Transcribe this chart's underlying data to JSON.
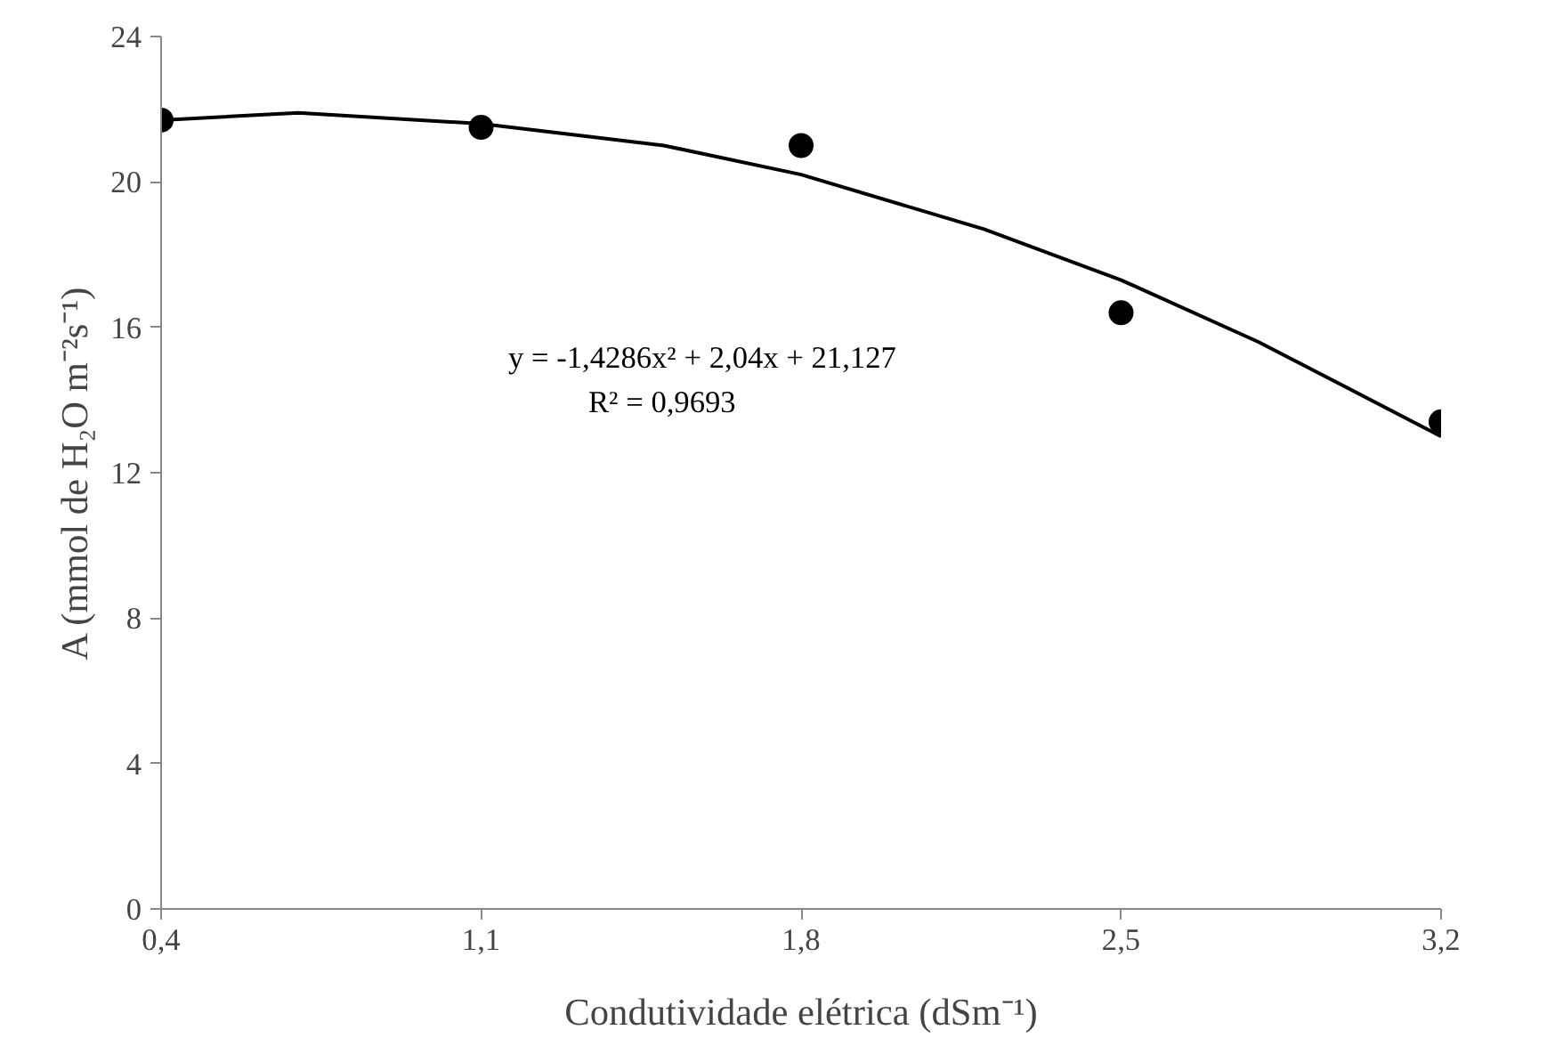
{
  "chart_data": {
    "type": "scatter",
    "xlabel": "Condutividade elétrica (dSm⁻¹)",
    "ylabel": "A (mmol de H₂O m⁻²s⁻¹)",
    "x": [
      0.4,
      1.1,
      1.8,
      2.5,
      3.2
    ],
    "series": [
      {
        "color": "#000000",
        "marker": "circle",
        "values": [
          21.7,
          21.5,
          21.0,
          16.4,
          13.4
        ]
      },
      {
        "type": "line",
        "color": "#000000",
        "marker": "none",
        "x": [
          0.4,
          0.7,
          1.1,
          1.5,
          1.8,
          2.2,
          2.5,
          2.8,
          3.2
        ],
        "values": [
          21.7,
          21.9,
          21.6,
          21.0,
          20.2,
          18.7,
          17.3,
          15.6,
          13.0
        ]
      }
    ],
    "xlim": [
      0.4,
      3.2
    ],
    "xticks": [
      {
        "value": 0.4,
        "label": "0,4"
      },
      {
        "value": 1.1,
        "label": "1,1"
      },
      {
        "value": 1.8,
        "label": "1,8"
      },
      {
        "value": 2.5,
        "label": "2,5"
      },
      {
        "value": 3.2,
        "label": "3,2"
      }
    ],
    "ylim": [
      0,
      24
    ],
    "yticks": [
      0,
      4,
      8,
      12,
      16,
      20,
      24
    ],
    "grid": false,
    "line_style": "solid",
    "annotations": [
      "y = -1,4286x² + 2,04x + 21,127",
      "R² = 0,9693"
    ]
  }
}
